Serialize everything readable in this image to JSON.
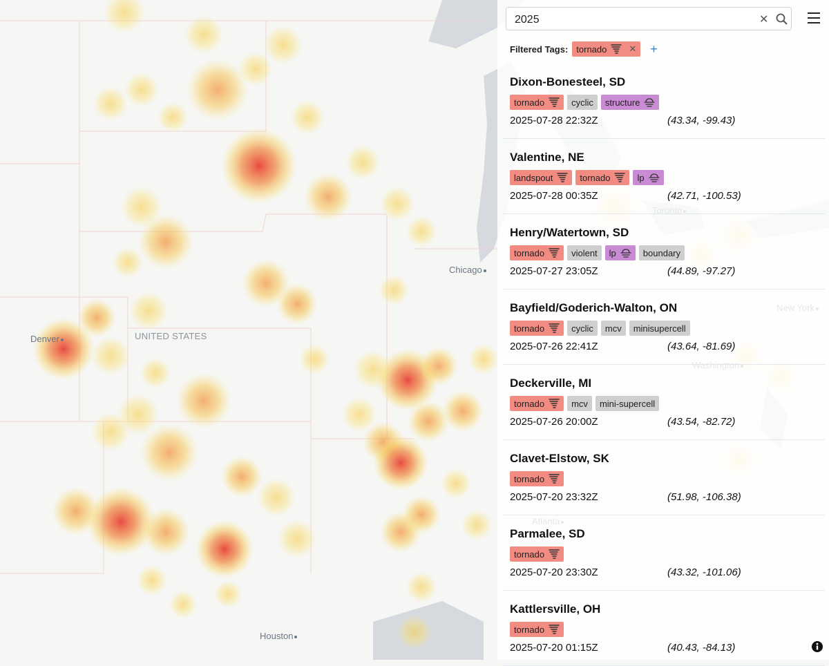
{
  "search": {
    "query": "2025"
  },
  "filter": {
    "label": "Filtered Tags:",
    "tags": [
      {
        "label": "tornado",
        "color": "#f28b82",
        "icon": "tornado"
      }
    ]
  },
  "map": {
    "labels": [
      {
        "text": "Chicago",
        "kind": "city"
      },
      {
        "text": "Denver",
        "kind": "city"
      },
      {
        "text": "UNITED STATES",
        "kind": "country"
      },
      {
        "text": "Toronto",
        "kind": "city"
      },
      {
        "text": "New York",
        "kind": "city"
      },
      {
        "text": "Washington",
        "kind": "city"
      },
      {
        "text": "Atlanta",
        "kind": "city"
      },
      {
        "text": "Houston",
        "kind": "city"
      }
    ]
  },
  "items": [
    {
      "title": "Dixon-Bonesteel, SD",
      "tags": [
        {
          "label": "tornado",
          "color": "#f28b82",
          "icon": "tornado"
        },
        {
          "label": "cyclic",
          "color": "#cfcfcf"
        },
        {
          "label": "structure",
          "color": "#c98bd3",
          "icon": "cloud"
        }
      ],
      "time": "2025-07-28 22:32Z",
      "coords": "(43.34, -99.43)"
    },
    {
      "title": "Valentine, NE",
      "tags": [
        {
          "label": "landspout",
          "color": "#f28b82",
          "icon": "tornado"
        },
        {
          "label": "tornado",
          "color": "#f28b82",
          "icon": "tornado"
        },
        {
          "label": "lp",
          "color": "#c98bd3",
          "icon": "cloud"
        }
      ],
      "time": "2025-07-28 00:35Z",
      "coords": "(42.71, -100.53)"
    },
    {
      "title": "Henry/Watertown, SD",
      "tags": [
        {
          "label": "tornado",
          "color": "#f28b82",
          "icon": "tornado"
        },
        {
          "label": "violent",
          "color": "#cfcfcf"
        },
        {
          "label": "lp",
          "color": "#c98bd3",
          "icon": "cloud"
        },
        {
          "label": "boundary",
          "color": "#cfcfcf"
        }
      ],
      "time": "2025-07-27 23:05Z",
      "coords": "(44.89, -97.27)"
    },
    {
      "title": "Bayfield/Goderich-Walton, ON",
      "tags": [
        {
          "label": "tornado",
          "color": "#f28b82",
          "icon": "tornado"
        },
        {
          "label": "cyclic",
          "color": "#cfcfcf"
        },
        {
          "label": "mcv",
          "color": "#cfcfcf"
        },
        {
          "label": "minisupercell",
          "color": "#cfcfcf"
        }
      ],
      "time": "2025-07-26 22:41Z",
      "coords": "(43.64, -81.69)"
    },
    {
      "title": "Deckerville, MI",
      "tags": [
        {
          "label": "tornado",
          "color": "#f28b82",
          "icon": "tornado"
        },
        {
          "label": "mcv",
          "color": "#cfcfcf"
        },
        {
          "label": "mini-supercell",
          "color": "#cfcfcf"
        }
      ],
      "time": "2025-07-26 20:00Z",
      "coords": "(43.54, -82.72)"
    },
    {
      "title": "Clavet-Elstow, SK",
      "tags": [
        {
          "label": "tornado",
          "color": "#f28b82",
          "icon": "tornado"
        }
      ],
      "time": "2025-07-20 23:32Z",
      "coords": "(51.98, -106.38)"
    },
    {
      "title": "Parmalee, SD",
      "tags": [
        {
          "label": "tornado",
          "color": "#f28b82",
          "icon": "tornado"
        }
      ],
      "time": "2025-07-20 23:30Z",
      "coords": "(43.32, -101.06)"
    },
    {
      "title": "Kattlersville, OH",
      "tags": [
        {
          "label": "tornado",
          "color": "#f28b82",
          "icon": "tornado"
        }
      ],
      "time": "2025-07-20 01:15Z",
      "coords": "(40.43, -84.13)"
    }
  ]
}
